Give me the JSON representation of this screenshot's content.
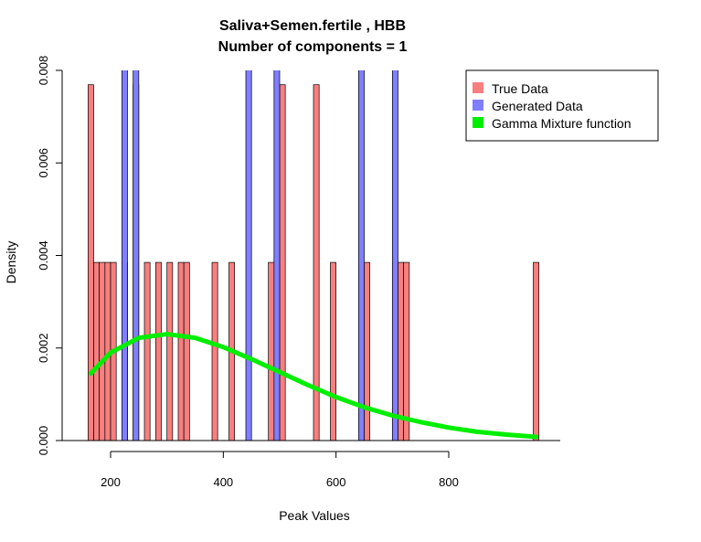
{
  "chart_data": {
    "type": "bar",
    "title": "Saliva+Semen.fertile , HBB",
    "subtitle": "Number of components =  1",
    "xlabel": "Peak Values",
    "ylabel": "Density",
    "xlim": [
      160,
      960
    ],
    "ylim": [
      0,
      0.008
    ],
    "x_ticks": [
      200,
      400,
      600,
      800
    ],
    "x_tick_labels": [
      "200",
      "400",
      "600",
      "800"
    ],
    "y_ticks": [
      0,
      0.002,
      0.004,
      0.006,
      0.008
    ],
    "y_tick_labels": [
      "0.000",
      "0.002",
      "0.004",
      "0.006",
      "0.008"
    ],
    "grid": false,
    "legend_position": "top-right",
    "bin_width": 10,
    "series": [
      {
        "name": "True Data",
        "color": "#f87f7f",
        "kind": "histogram",
        "bins": [
          {
            "start": 160,
            "end": 170,
            "value": 0.00769
          },
          {
            "start": 170,
            "end": 180,
            "value": 0.00385
          },
          {
            "start": 180,
            "end": 190,
            "value": 0.00385
          },
          {
            "start": 190,
            "end": 200,
            "value": 0.00385
          },
          {
            "start": 200,
            "end": 210,
            "value": 0.00385
          },
          {
            "start": 220,
            "end": 230,
            "value": 0.00385
          },
          {
            "start": 240,
            "end": 250,
            "value": 0.00769
          },
          {
            "start": 260,
            "end": 270,
            "value": 0.00385
          },
          {
            "start": 280,
            "end": 290,
            "value": 0.00385
          },
          {
            "start": 300,
            "end": 310,
            "value": 0.00385
          },
          {
            "start": 320,
            "end": 330,
            "value": 0.00385
          },
          {
            "start": 330,
            "end": 340,
            "value": 0.00385
          },
          {
            "start": 380,
            "end": 390,
            "value": 0.00385
          },
          {
            "start": 410,
            "end": 420,
            "value": 0.00385
          },
          {
            "start": 480,
            "end": 490,
            "value": 0.00385
          },
          {
            "start": 500,
            "end": 510,
            "value": 0.00769
          },
          {
            "start": 560,
            "end": 570,
            "value": 0.00769
          },
          {
            "start": 590,
            "end": 600,
            "value": 0.00385
          },
          {
            "start": 650,
            "end": 660,
            "value": 0.00385
          },
          {
            "start": 700,
            "end": 710,
            "value": 0.00385
          },
          {
            "start": 710,
            "end": 720,
            "value": 0.00385
          },
          {
            "start": 720,
            "end": 730,
            "value": 0.00385
          },
          {
            "start": 950,
            "end": 960,
            "value": 0.00385
          }
        ]
      },
      {
        "name": "Generated Data",
        "color": "#7f7fff",
        "kind": "histogram",
        "bins": [
          {
            "start": 220,
            "end": 230,
            "value": 0.0085
          },
          {
            "start": 240,
            "end": 250,
            "value": 0.0085
          },
          {
            "start": 440,
            "end": 450,
            "value": 0.0085
          },
          {
            "start": 490,
            "end": 500,
            "value": 0.0085
          },
          {
            "start": 640,
            "end": 650,
            "value": 0.0085
          },
          {
            "start": 700,
            "end": 710,
            "value": 0.0085
          }
        ]
      },
      {
        "name": "Gamma Mixture function",
        "color": "#00ee00",
        "kind": "line",
        "x": [
          165,
          200,
          250,
          300,
          350,
          400,
          450,
          500,
          550,
          600,
          650,
          700,
          750,
          800,
          850,
          900,
          955
        ],
        "values": [
          0.00145,
          0.0019,
          0.00222,
          0.0023,
          0.00222,
          0.00202,
          0.00176,
          0.00148,
          0.0012,
          0.00094,
          0.00072,
          0.00054,
          0.0004,
          0.00028,
          0.00019,
          0.00013,
          8e-05
        ]
      }
    ]
  }
}
